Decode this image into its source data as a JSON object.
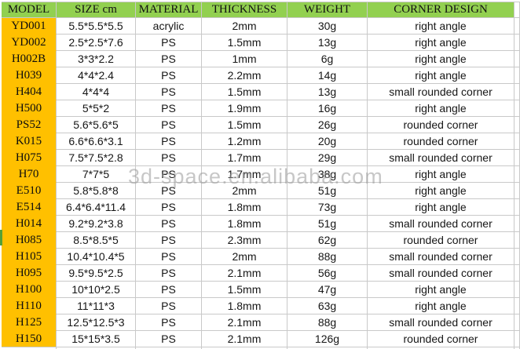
{
  "watermark": {
    "text": "3d-space.en.alibaba.com"
  },
  "colors": {
    "header_bg": "#92D050",
    "model_col_bg": "#FFC000",
    "gridline": "#C9C9C9",
    "watermark": "#9A9A9A",
    "left_marker": "#55A036",
    "text": "#000000"
  },
  "chart_data": {
    "type": "table",
    "title": "",
    "columns": [
      "MODEL",
      "SIZE cm",
      "MATERIAL",
      "THICKNESS",
      "WEIGHT",
      "CORNER DESIGN"
    ],
    "column_keys": [
      "model",
      "size",
      "material",
      "thickness",
      "weight",
      "corner"
    ],
    "rows": [
      [
        "YD001",
        "5.5*5.5*5.5",
        "acrylic",
        "2mm",
        "30g",
        "right angle"
      ],
      [
        "YD002",
        "2.5*2.5*7.6",
        "PS",
        "1.5mm",
        "13g",
        "right angle"
      ],
      [
        "H002B",
        "3*3*2.2",
        "PS",
        "1mm",
        "6g",
        "right angle"
      ],
      [
        "H039",
        "4*4*2.4",
        "PS",
        "2.2mm",
        "14g",
        "right angle"
      ],
      [
        "H404",
        "4*4*4",
        "PS",
        "1.5mm",
        "13g",
        "small rounded corner"
      ],
      [
        "H500",
        "5*5*2",
        "PS",
        "1.9mm",
        "16g",
        "right angle"
      ],
      [
        "PS52",
        "5.6*5.6*5",
        "PS",
        "1.5mm",
        "26g",
        "rounded corner"
      ],
      [
        "K015",
        "6.6*6.6*3.1",
        "PS",
        "1.2mm",
        "20g",
        "rounded corner"
      ],
      [
        "H075",
        "7.5*7.5*2.8",
        "PS",
        "1.7mm",
        "29g",
        "small rounded corner"
      ],
      [
        "H70",
        "7*7*5",
        "PS",
        "1.7mm",
        "38g",
        "right angle"
      ],
      [
        "E510",
        "5.8*5.8*8",
        "PS",
        "2mm",
        "51g",
        "right angle"
      ],
      [
        "E514",
        "6.4*6.4*11.4",
        "PS",
        "1.8mm",
        "73g",
        "right angle"
      ],
      [
        "H014",
        "9.2*9.2*3.8",
        "PS",
        "1.8mm",
        "51g",
        "small rounded corner"
      ],
      [
        "H085",
        "8.5*8.5*5",
        "PS",
        "2.3mm",
        "62g",
        "rounded corner"
      ],
      [
        "H105",
        "10.4*10.4*5",
        "PS",
        "2mm",
        "88g",
        "small rounded corner"
      ],
      [
        "H095",
        "9.5*9.5*2.5",
        "PS",
        "2.1mm",
        "56g",
        "small rounded corner"
      ],
      [
        "H100",
        "10*10*2.5",
        "PS",
        "1.5mm",
        "47g",
        "right angle"
      ],
      [
        "H110",
        "11*11*3",
        "PS",
        "1.8mm",
        "63g",
        "right angle"
      ],
      [
        "H125",
        "12.5*12.5*3",
        "PS",
        "2.1mm",
        "88g",
        "small rounded corner"
      ],
      [
        "H150",
        "15*15*3.5",
        "PS",
        "2.1mm",
        "126g",
        "rounded corner"
      ]
    ]
  }
}
